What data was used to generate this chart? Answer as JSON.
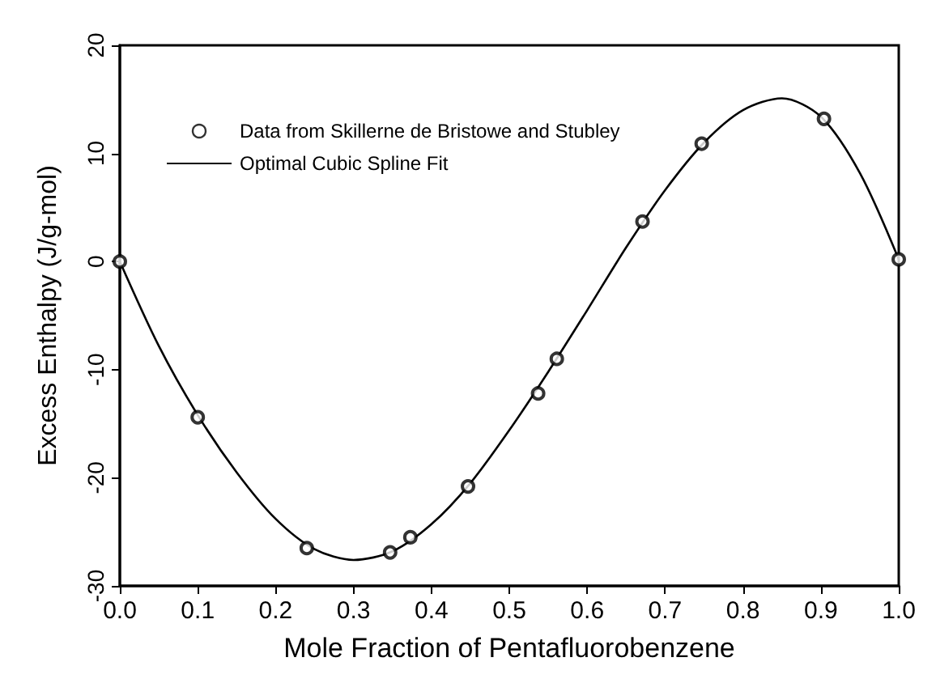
{
  "chart_data": {
    "type": "scatter",
    "xlabel": "Mole Fraction of Pentafluorobenzene",
    "ylabel": "Excess Enthalpy (J/g-mol)",
    "xlim": [
      0,
      1
    ],
    "xticks": [
      {
        "value": 0,
        "label": "0.0"
      },
      0.1,
      0.2,
      0.3,
      0.4,
      0.5,
      0.6,
      0.7,
      0.8,
      0.9,
      {
        "value": 1,
        "label": "1.0"
      }
    ],
    "ylim": [
      -30,
      20
    ],
    "yticks": [
      -30,
      -20,
      -10,
      0,
      10,
      20
    ],
    "grid": false,
    "legend": "top left",
    "series": [
      {
        "name": "Data from Skillerne de Bristowe and Stubley",
        "marker": "circle",
        "color": "#000000",
        "x": [
          0,
          0.1,
          0.24,
          0.347,
          0.373,
          0.447,
          0.537,
          0.561,
          0.671,
          0.747,
          0.904,
          1.0
        ],
        "values": [
          0,
          -14.4,
          -26.5,
          -26.9,
          -25.5,
          -20.8,
          -12.2,
          -9.0,
          3.7,
          10.9,
          13.2,
          0.2
        ]
      },
      {
        "name": "Optimal Cubic Spline Fit",
        "type": "line",
        "marker": "none",
        "line_style": "solid",
        "color": "#000000",
        "x": [
          0,
          0.05,
          0.1,
          0.15,
          0.2,
          0.25,
          0.3,
          0.35,
          0.4,
          0.45,
          0.5,
          0.55,
          0.6,
          0.65,
          0.7,
          0.75,
          0.8,
          0.85,
          0.9,
          0.95,
          1.0
        ],
        "values": [
          0,
          -7.8,
          -14.2,
          -19.5,
          -23.8,
          -26.6,
          -27.6,
          -26.8,
          -24.3,
          -20.5,
          -15.6,
          -10.2,
          -4.5,
          1.3,
          6.6,
          11.0,
          14.0,
          15.1,
          13.4,
          8.2,
          0.2
        ]
      }
    ]
  }
}
